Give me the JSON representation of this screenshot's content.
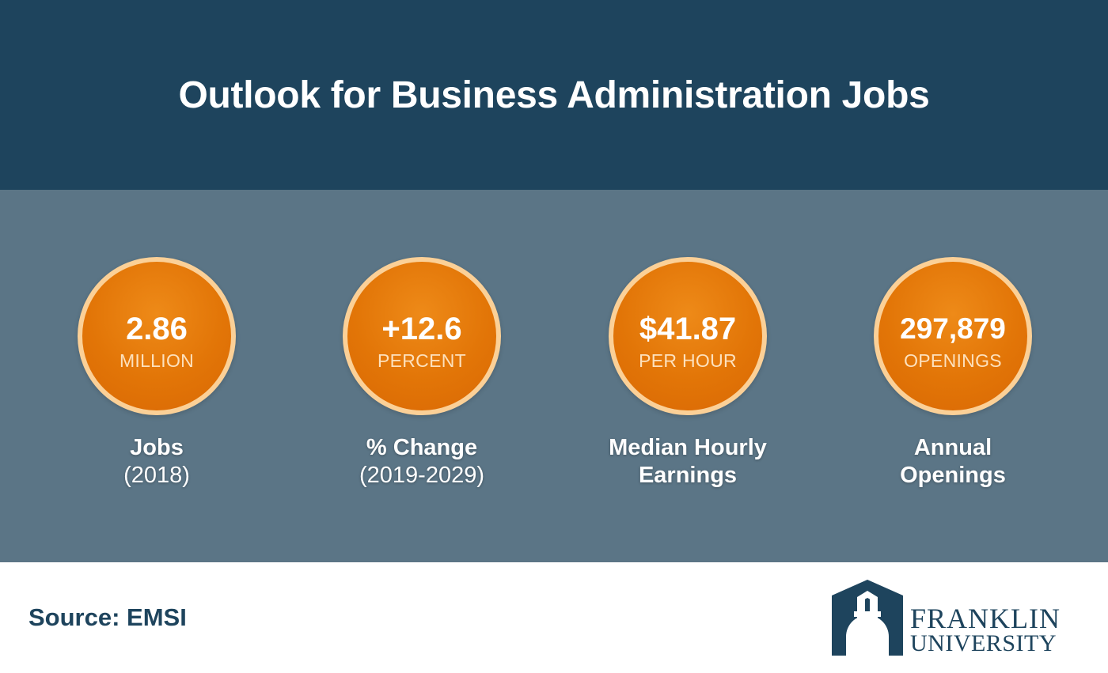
{
  "header": {
    "title": "Outlook for Business Administration Jobs"
  },
  "stats": [
    {
      "value": "2.86",
      "unit": "MILLION",
      "label": "Jobs",
      "sublabel": "(2018)"
    },
    {
      "value": "+12.6",
      "unit": "PERCENT",
      "label": "% Change",
      "sublabel": "(2019-2029)"
    },
    {
      "value": "$41.87",
      "unit": "PER HOUR",
      "label": "Median Hourly",
      "sublabel": "Earnings"
    },
    {
      "value": "297,879",
      "unit": "OPENINGS",
      "label": "Annual",
      "sublabel": "Openings"
    }
  ],
  "footer": {
    "source": "Source: EMSI",
    "logo_line1": "FRANKLIN",
    "logo_line2": "UNIVERSITY",
    "logo_icon": "franklin-arch-icon"
  },
  "colors": {
    "header_bg": "#1e445d",
    "band_bg": "#5b7586",
    "circle_fill": "#e27507",
    "circle_ring": "#fbd097",
    "brand_navy": "#1e445d"
  }
}
